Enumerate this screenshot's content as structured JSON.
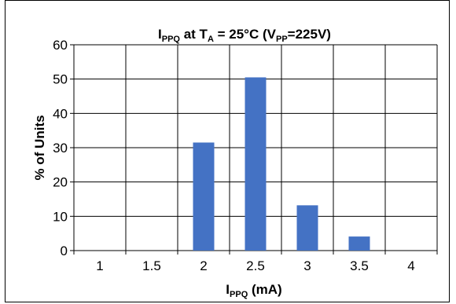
{
  "chart_data": {
    "type": "bar",
    "title": {
      "main": "I",
      "main_sub": "PPQ",
      "mid": " at T",
      "mid_sub": "A",
      "rest": " = 25°C (V",
      "rest_sub": "PP",
      "end": "=225V)"
    },
    "xlabel": {
      "main": "I",
      "sub": "PPQ",
      "rest": " (mA)"
    },
    "ylabel": "% of Units",
    "categories": [
      "1",
      "1.5",
      "2",
      "2.5",
      "3",
      "3.5",
      "4"
    ],
    "values": [
      0,
      0,
      31.5,
      50.5,
      13.2,
      4.1,
      0
    ],
    "ylim": [
      0,
      60
    ],
    "yticks": [
      "0",
      "10",
      "20",
      "30",
      "40",
      "50",
      "60"
    ],
    "grid": true,
    "bar_color": "#4472C4"
  }
}
